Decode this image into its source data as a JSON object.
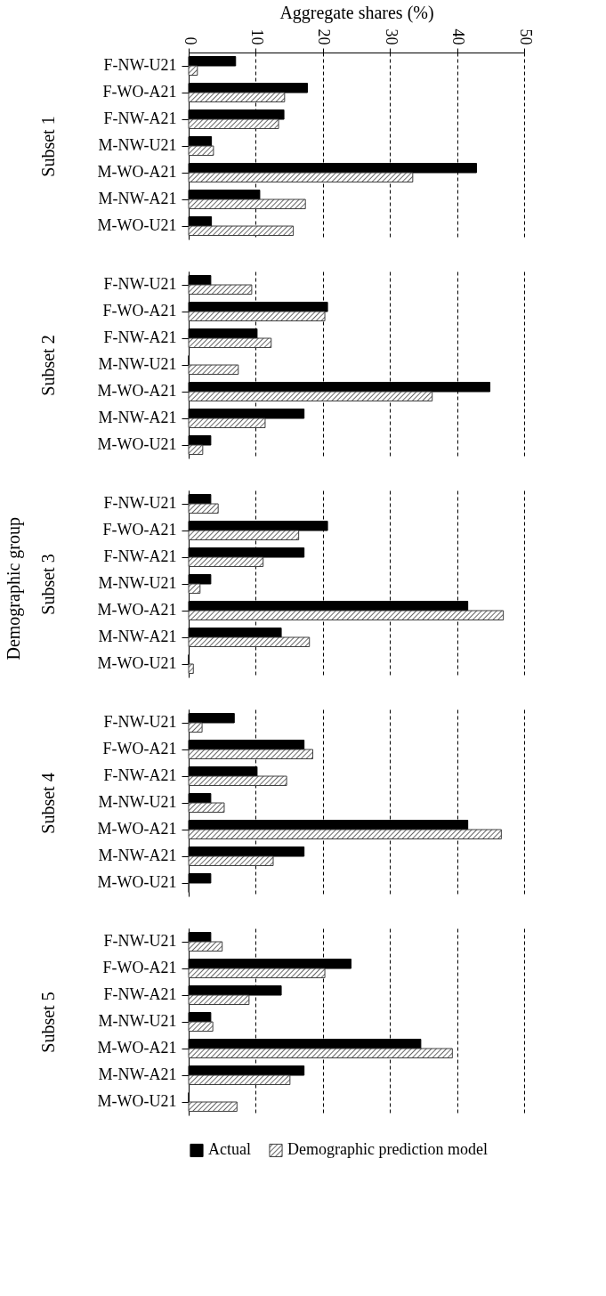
{
  "chart_data": [
    {
      "type": "bar",
      "orientation": "horizontal",
      "xlabel": "Aggregate shares (%)",
      "ylabel": "Subset 1",
      "xlim": [
        0,
        50
      ],
      "xticks": [
        0,
        10,
        20,
        30,
        40,
        50
      ],
      "grid": "x",
      "categories": [
        "F-NW-U21",
        "F-WO-A21",
        "F-NW-A21",
        "M-NW-U21",
        "M-WO-A21",
        "M-NW-A21",
        "M-WO-U21"
      ],
      "series": [
        {
          "color": "#000000",
          "values": [
            7.0,
            17.7,
            14.2,
            3.4,
            42.9,
            10.6,
            3.4
          ]
        },
        {
          "color": "#404040",
          "values": [
            1.3,
            14.3,
            13.4,
            3.7,
            33.4,
            17.4,
            15.6
          ]
        }
      ]
    },
    {
      "type": "bar",
      "orientation": "horizontal",
      "ylabel": "Subset 2",
      "xlim": [
        0,
        50
      ],
      "xticks": [
        0,
        10,
        20,
        30,
        40,
        50
      ],
      "grid": "x",
      "tick_labels": "y",
      "categories": [
        "F-NW-U21",
        "F-WO-A21",
        "F-NW-A21",
        "M-NW-U21",
        "M-WO-A21",
        "M-NW-A21",
        "M-WO-U21"
      ],
      "series": [
        {
          "color": "#000000",
          "values": [
            3.3,
            20.7,
            10.2,
            0,
            44.9,
            17.2,
            3.3
          ]
        },
        {
          "color": "#404040",
          "values": [
            9.4,
            20.3,
            12.3,
            7.4,
            36.3,
            11.4,
            2.1
          ]
        }
      ]
    },
    {
      "type": "bar",
      "orientation": "horizontal",
      "ylabel": "Subset 3",
      "annotations": [
        "Demographic group"
      ],
      "xlim": [
        0,
        50
      ],
      "xticks": [
        0,
        10,
        20,
        30,
        40,
        50
      ],
      "grid": "x",
      "tick_labels": "y",
      "categories": [
        "F-NW-U21",
        "F-WO-A21",
        "F-NW-A21",
        "M-NW-U21",
        "M-WO-A21",
        "M-NW-A21",
        "M-WO-U21"
      ],
      "series": [
        {
          "color": "#000000",
          "values": [
            3.3,
            20.7,
            17.2,
            3.3,
            41.6,
            13.8,
            0
          ]
        },
        {
          "color": "#404040",
          "values": [
            4.4,
            16.4,
            11.1,
            1.7,
            46.9,
            18.0,
            0.7
          ]
        }
      ]
    },
    {
      "type": "bar",
      "orientation": "horizontal",
      "ylabel": "Subset 4",
      "xlim": [
        0,
        50
      ],
      "xticks": [
        0,
        10,
        20,
        30,
        40,
        50
      ],
      "grid": "x",
      "tick_labels": "y",
      "categories": [
        "F-NW-U21",
        "F-WO-A21",
        "F-NW-A21",
        "M-NW-U21",
        "M-WO-A21",
        "M-NW-A21",
        "M-WO-U21"
      ],
      "series": [
        {
          "color": "#000000",
          "values": [
            6.8,
            17.2,
            10.2,
            3.3,
            41.6,
            17.2,
            3.3
          ]
        },
        {
          "color": "#404040",
          "values": [
            2.0,
            18.5,
            14.6,
            5.3,
            46.6,
            12.6,
            0
          ]
        }
      ]
    },
    {
      "type": "bar",
      "orientation": "horizontal",
      "ylabel": "Subset 5",
      "xlim": [
        0,
        50
      ],
      "xticks": [
        0,
        10,
        20,
        30,
        40,
        50
      ],
      "grid": "x",
      "tick_labels": "y",
      "legend": "bottom",
      "categories": [
        "F-NW-U21",
        "F-WO-A21",
        "F-NW-A21",
        "M-NW-U21",
        "M-WO-A21",
        "M-NW-A21",
        "M-WO-U21"
      ],
      "series": [
        {
          "name": "Actual",
          "color": "#000000",
          "values": [
            3.3,
            24.2,
            13.8,
            3.3,
            34.6,
            17.2,
            0
          ]
        },
        {
          "name": "Demographic prediction model",
          "color": "#404040",
          "values": [
            5.0,
            20.3,
            9.0,
            3.6,
            39.3,
            15.1,
            7.2
          ]
        }
      ]
    }
  ]
}
